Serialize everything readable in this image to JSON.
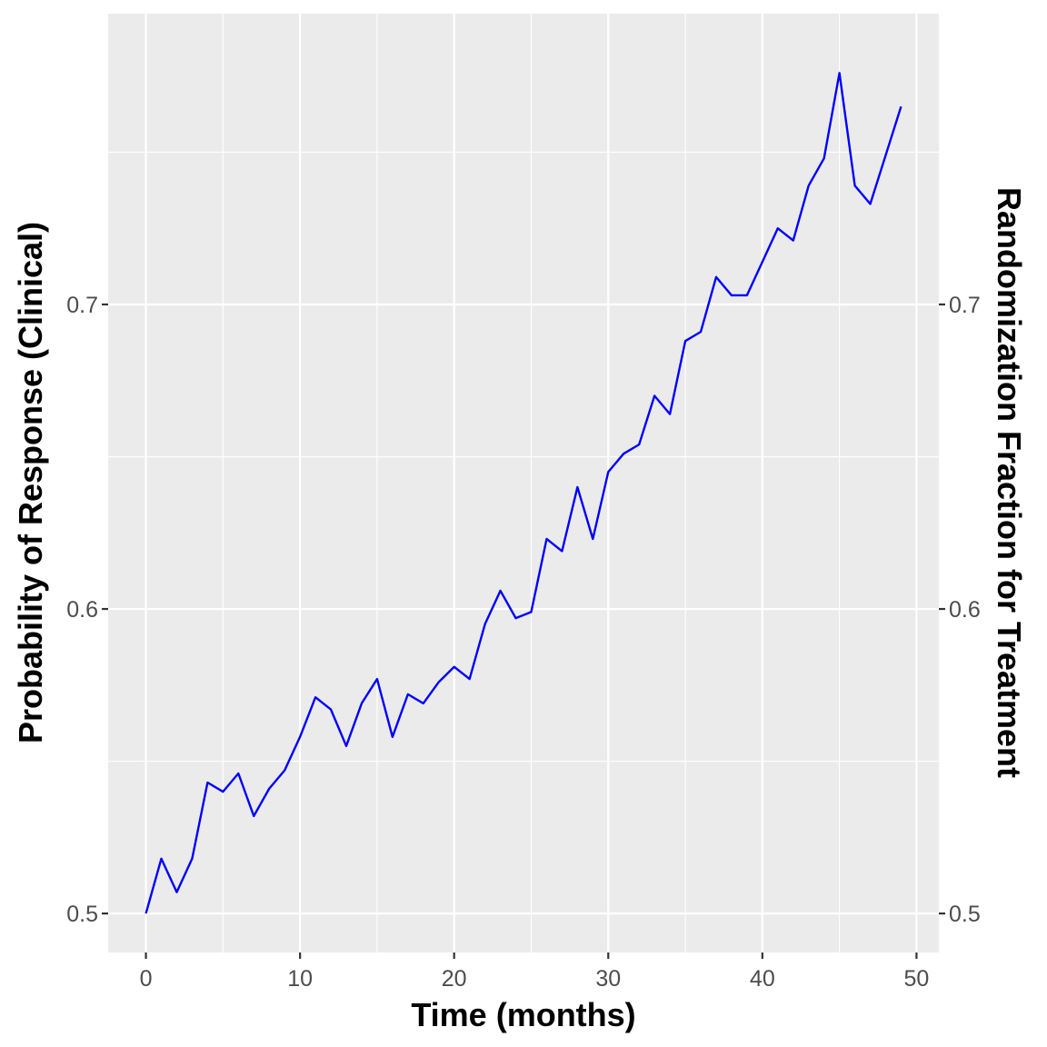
{
  "chart_data": {
    "type": "line",
    "title": "",
    "xlabel": "Time (months)",
    "ylabel": "Probability of Response (Clinical)",
    "y2label": "Randomization Fraction for Treatment",
    "xlim": [
      -2.45,
      51.45
    ],
    "ylim": [
      0.4872,
      0.7955
    ],
    "x_ticks": [
      0,
      10,
      20,
      30,
      40,
      50
    ],
    "x_minor_ticks": [
      5,
      15,
      25,
      35,
      45
    ],
    "y_ticks": [
      0.5,
      0.6,
      0.7
    ],
    "y_tick_labels": [
      "0.5",
      "0.6",
      "0.7"
    ],
    "y_minor_ticks": [
      0.55,
      0.65,
      0.75
    ],
    "grid": true,
    "colors": {
      "panel": "#ebebeb",
      "grid": "#ffffff",
      "line": "#0000ff",
      "tick_text": "#4d4d4d",
      "tick_mark": "#333333"
    },
    "series": [
      {
        "x": [
          0,
          1,
          2,
          3,
          4,
          5,
          6,
          7,
          8,
          9,
          10,
          11,
          12,
          13,
          14,
          15,
          16,
          17,
          18,
          19,
          20,
          21,
          22,
          23,
          24,
          25,
          26,
          27,
          28,
          29,
          30,
          31,
          32,
          33,
          34,
          35,
          36,
          37,
          38,
          39,
          40,
          41,
          42,
          43,
          44,
          45,
          46,
          47,
          48,
          49
        ],
        "y": [
          0.5,
          0.518,
          0.507,
          0.518,
          0.543,
          0.54,
          0.546,
          0.532,
          0.541,
          0.547,
          0.558,
          0.571,
          0.567,
          0.555,
          0.569,
          0.577,
          0.558,
          0.572,
          0.569,
          0.576,
          0.581,
          0.577,
          0.595,
          0.606,
          0.597,
          0.599,
          0.623,
          0.619,
          0.64,
          0.623,
          0.645,
          0.651,
          0.654,
          0.67,
          0.664,
          0.688,
          0.691,
          0.709,
          0.703,
          0.703,
          0.714,
          0.725,
          0.721,
          0.739,
          0.748,
          0.776,
          0.739,
          0.733,
          0.749,
          0.765
        ]
      }
    ]
  }
}
